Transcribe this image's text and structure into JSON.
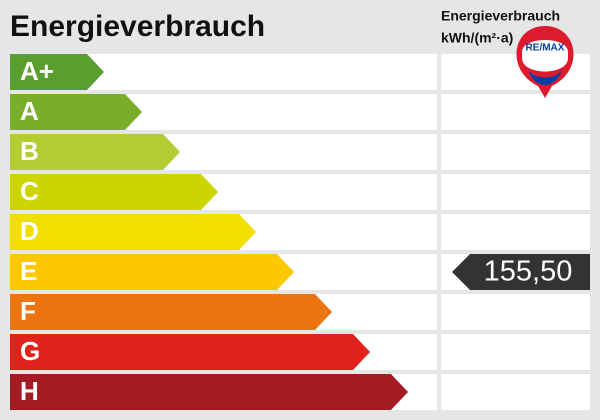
{
  "header": {
    "title": "Energieverbrauch",
    "column_title": "Energieverbrauch",
    "column_unit": "kWh/(m²·a)",
    "logo": "RE/MAX"
  },
  "classes": [
    {
      "label": "A+",
      "color": "#5a9e2f"
    },
    {
      "label": "A",
      "color": "#7aad2a"
    },
    {
      "label": "B",
      "color": "#b5cb34"
    },
    {
      "label": "C",
      "color": "#ccd500"
    },
    {
      "label": "D",
      "color": "#f0df00"
    },
    {
      "label": "E",
      "color": "#fdc800",
      "value": "155,50"
    },
    {
      "label": "F",
      "color": "#ec7512"
    },
    {
      "label": "G",
      "color": "#e1231b"
    },
    {
      "label": "H",
      "color": "#a31c24"
    }
  ]
}
